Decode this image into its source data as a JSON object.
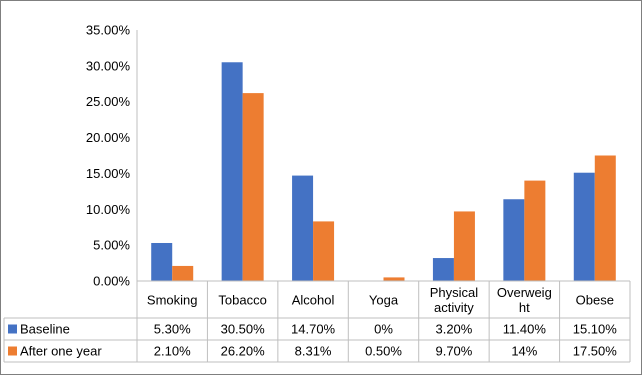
{
  "chart_data": {
    "type": "bar",
    "title": "",
    "xlabel": "",
    "ylabel": "",
    "categories": [
      "Smoking",
      "Tobacco",
      "Alcohol",
      "Yoga",
      "Physical activity",
      "Overweight",
      "Obese"
    ],
    "category_label_lines": [
      [
        "Smoking"
      ],
      [
        "Tobacco"
      ],
      [
        "Alcohol"
      ],
      [
        "Yoga"
      ],
      [
        "Physical",
        "activity"
      ],
      [
        "Overweig",
        "ht"
      ],
      [
        "Obese"
      ]
    ],
    "ylim": [
      0,
      35
    ],
    "yticks": [
      "0.00%",
      "5.00%",
      "10.00%",
      "15.00%",
      "20.00%",
      "25.00%",
      "30.00%",
      "35.00%"
    ],
    "grid": false,
    "legend": "data-table",
    "series": [
      {
        "name": "Baseline",
        "color": "#4472C4",
        "values": [
          5.3,
          30.5,
          14.7,
          0,
          3.2,
          11.4,
          15.1
        ],
        "labels": [
          "5.30%",
          "30.50%",
          "14.70%",
          "0%",
          "3.20%",
          "11.40%",
          "15.10%"
        ]
      },
      {
        "name": "After one year",
        "color": "#ED7D31",
        "values": [
          2.1,
          26.2,
          8.31,
          0.5,
          9.7,
          14,
          17.5
        ],
        "labels": [
          "2.10%",
          "26.20%",
          "8.31%",
          "0.50%",
          "9.70%",
          "14%",
          "17.50%"
        ]
      }
    ]
  }
}
